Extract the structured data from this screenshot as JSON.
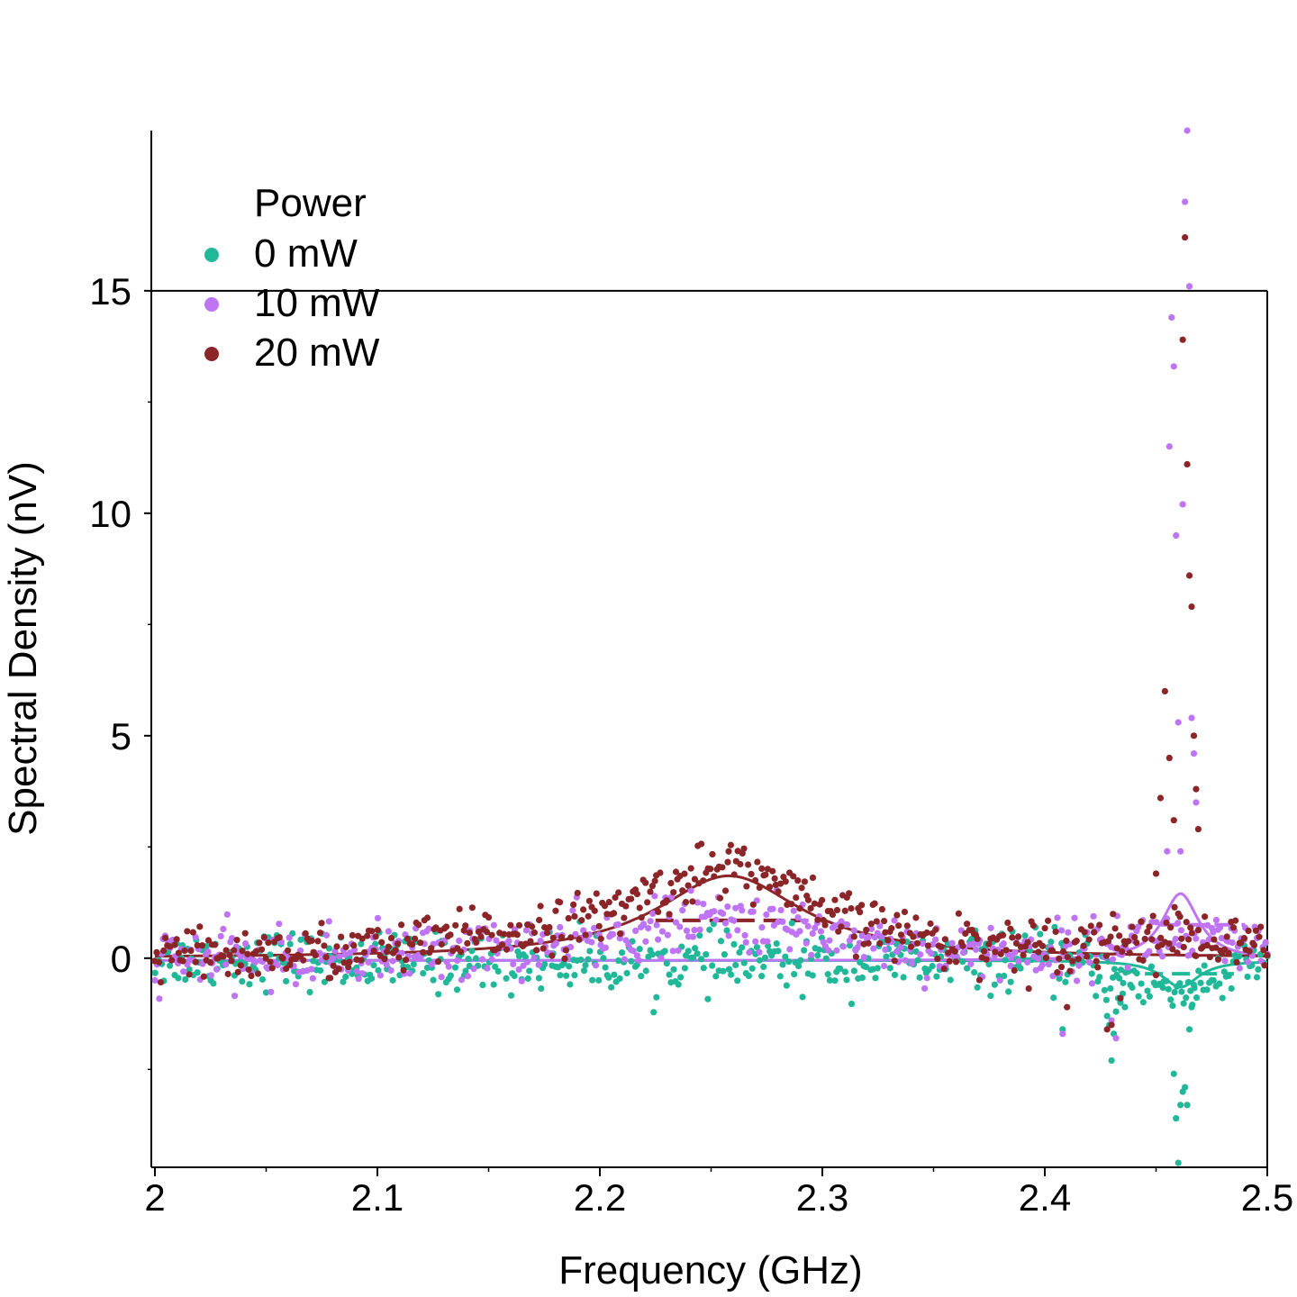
{
  "chart_data": {
    "type": "scatter",
    "xlabel": "Frequency (GHz)",
    "ylabel": "Spectral Density (nV)",
    "xlim": [
      2.0,
      2.5
    ],
    "ylim": [
      -4.7,
      18.6
    ],
    "xticks": [
      2.0,
      2.1,
      2.2,
      2.3,
      2.4,
      2.5
    ],
    "xtick_labels": [
      "2",
      "2.1",
      "2.2",
      "2.3",
      "2.4",
      "2.5"
    ],
    "yticks": [
      0,
      5,
      10,
      15
    ],
    "ytick_labels": [
      "0",
      "5",
      "10",
      "15"
    ],
    "grid": false,
    "legend": {
      "title": "Power",
      "placement": "top-left"
    },
    "series": [
      {
        "name": "0 mW",
        "color": "#20b899",
        "noise_sd": 0.32,
        "x": [
          2.0,
          2.05,
          2.1,
          2.15,
          2.2,
          2.25,
          2.3,
          2.35,
          2.4,
          2.41,
          2.42,
          2.43,
          2.44,
          2.45,
          2.46,
          2.47,
          2.48,
          2.49,
          2.5
        ],
        "y": [
          0.0,
          0.0,
          -0.1,
          -0.1,
          -0.1,
          -0.1,
          -0.1,
          -0.1,
          -0.05,
          -0.1,
          -0.2,
          -0.4,
          -0.5,
          -0.6,
          -0.75,
          -0.6,
          -0.4,
          -0.2,
          -0.1
        ],
        "fit": {
          "lorentz_center": 2.461,
          "lorentz_amp": -0.6,
          "lorentz_width": 0.01,
          "baseline": -0.05
        },
        "fit_dashed_level": -0.35,
        "fit_dashed_range": [
          2.445,
          2.485
        ],
        "outliers": {
          "x": [
            2.408,
            2.428,
            2.429,
            2.43,
            2.431,
            2.432,
            2.433,
            2.434,
            2.435,
            2.436,
            2.458,
            2.459,
            2.46,
            2.461,
            2.462,
            2.463,
            2.464,
            2.465,
            2.466,
            2.467
          ],
          "y": [
            -1.6,
            -1.3,
            -1.5,
            -2.3,
            -1.7,
            -1.2,
            -0.9,
            -1.0,
            -0.8,
            -1.1,
            -2.6,
            -3.6,
            -4.6,
            -3.3,
            -3.0,
            -2.9,
            -3.3,
            -1.6,
            -1.1,
            -0.6
          ]
        }
      },
      {
        "name": "10 mW",
        "color": "#bf73f5",
        "noise_sd": 0.32,
        "x": [
          2.0,
          2.05,
          2.1,
          2.15,
          2.2,
          2.25,
          2.3,
          2.35,
          2.4,
          2.45,
          2.5
        ],
        "y": [
          0.0,
          0.0,
          0.1,
          0.2,
          0.4,
          0.9,
          0.6,
          0.2,
          0.1,
          0.5,
          0.1
        ],
        "fit": {
          "lorentz_center": 2.461,
          "lorentz_amp": 1.5,
          "lorentz_width": 0.01,
          "baseline": -0.05
        },
        "fit_dashed_level": 0.85,
        "fit_dashed_range": [
          2.225,
          2.295
        ],
        "fit_dashed_level_2": 0.75,
        "fit_dashed_range_2": [
          2.452,
          2.49
        ],
        "outliers": {
          "x": [
            2.408,
            2.43,
            2.432,
            2.455,
            2.456,
            2.457,
            2.458,
            2.459,
            2.46,
            2.461,
            2.462,
            2.463,
            2.464,
            2.465,
            2.466,
            2.467,
            2.468
          ],
          "y": [
            -1.7,
            -1.4,
            -1.8,
            2.4,
            11.5,
            14.4,
            13.3,
            9.5,
            5.3,
            2.4,
            10.2,
            17.0,
            18.6,
            15.1,
            5.4,
            4.6,
            3.5
          ]
        }
      },
      {
        "name": "20 mW",
        "color": "#8b2527",
        "noise_sd": 0.3,
        "x": [
          2.0,
          2.05,
          2.1,
          2.15,
          2.2,
          2.225,
          2.25,
          2.26,
          2.275,
          2.3,
          2.35,
          2.4,
          2.45,
          2.5
        ],
        "y": [
          0.0,
          0.1,
          0.2,
          0.5,
          0.9,
          1.5,
          2.0,
          2.1,
          1.8,
          1.0,
          0.4,
          0.3,
          0.5,
          0.2
        ],
        "fit": {
          "lorentz_center": 2.258,
          "lorentz_amp": 1.85,
          "lorentz_width": 0.04,
          "baseline": 0.0
        },
        "fit_dashed_level": 0.85,
        "fit_dashed_range": [
          2.225,
          2.29
        ],
        "outliers": {
          "x": [
            2.41,
            2.428,
            2.43,
            2.434,
            2.45,
            2.452,
            2.454,
            2.456,
            2.458,
            2.46,
            2.462,
            2.463,
            2.464,
            2.465,
            2.466,
            2.467,
            2.468,
            2.469
          ],
          "y": [
            -1.1,
            -1.6,
            -1.5,
            -0.9,
            1.9,
            3.6,
            6.0,
            4.5,
            3.1,
            1.0,
            13.9,
            16.2,
            11.1,
            8.6,
            7.9,
            5.0,
            3.8,
            2.9
          ]
        }
      }
    ]
  }
}
